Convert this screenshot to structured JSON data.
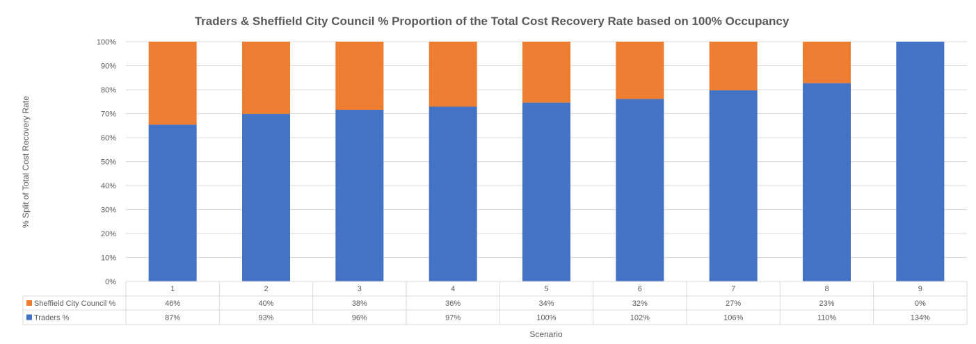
{
  "chart_data": {
    "type": "bar",
    "stacked": true,
    "title": "Traders & Sheffield City Council % Proportion of the Total Cost Recovery Rate based on 100% Occupancy",
    "xlabel": "Scenario",
    "ylabel": "% Split of Total Cost Recovery Rate",
    "ylim": [
      0,
      100
    ],
    "yticks": [
      "0%",
      "10%",
      "20%",
      "30%",
      "40%",
      "50%",
      "60%",
      "70%",
      "80%",
      "90%",
      "100%"
    ],
    "categories": [
      "1",
      "2",
      "3",
      "4",
      "5",
      "6",
      "7",
      "8",
      "9"
    ],
    "grid": true,
    "legend": "data-table",
    "series": [
      {
        "name": "Traders %",
        "color": "#4472C4",
        "values": [
          65.4,
          69.9,
          71.6,
          72.9,
          74.6,
          76.1,
          79.7,
          82.7,
          100
        ],
        "table_labels": [
          "87%",
          "93%",
          "96%",
          "97%",
          "100%",
          "102%",
          "106%",
          "110%",
          "134%"
        ]
      },
      {
        "name": "Sheffield City Council %",
        "color": "#ED7D31",
        "values": [
          34.6,
          30.1,
          28.4,
          27.1,
          25.4,
          23.9,
          20.3,
          17.3,
          0
        ],
        "table_labels": [
          "46%",
          "40%",
          "38%",
          "36%",
          "34%",
          "32%",
          "27%",
          "23%",
          "0%"
        ]
      }
    ]
  }
}
